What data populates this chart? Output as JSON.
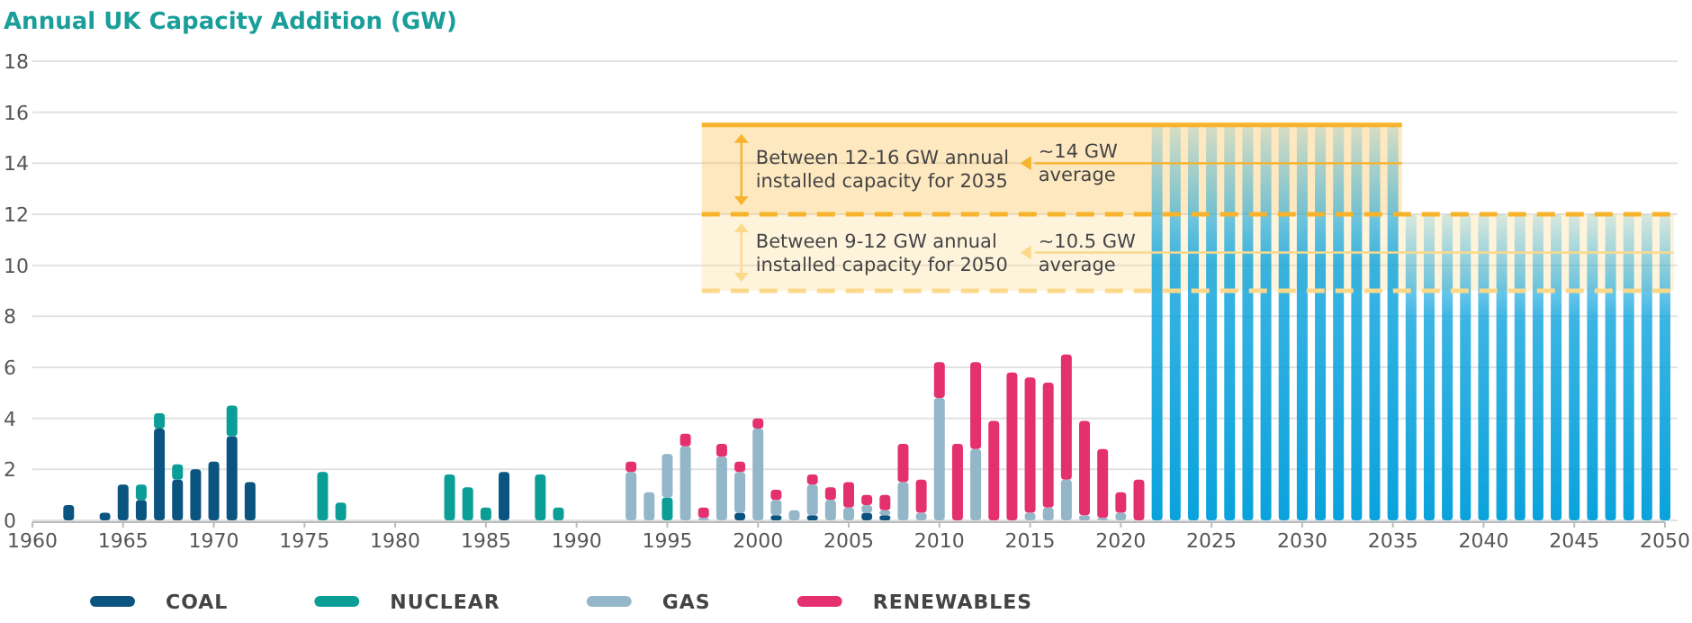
{
  "chart_data": {
    "type": "bar",
    "title": "Annual UK Capacity Addition (GW)",
    "stacked": true,
    "x": [
      1962,
      1964,
      1965,
      1966,
      1967,
      1968,
      1969,
      1970,
      1971,
      1972,
      1976,
      1977,
      1983,
      1984,
      1985,
      1986,
      1988,
      1989,
      1993,
      1994,
      1995,
      1996,
      1997,
      1998,
      1999,
      2000,
      2001,
      2002,
      2003,
      2004,
      2005,
      2006,
      2007,
      2008,
      2009,
      2010,
      2011,
      2012,
      2013,
      2014,
      2015,
      2016,
      2017,
      2018,
      2019,
      2020,
      2021,
      2022,
      2023,
      2024,
      2025,
      2026,
      2027,
      2028,
      2029,
      2030,
      2031,
      2032,
      2033,
      2034,
      2035,
      2036,
      2037,
      2038,
      2039,
      2040,
      2041,
      2042,
      2043,
      2044,
      2045,
      2046,
      2047,
      2048,
      2049,
      2050
    ],
    "series": [
      {
        "name": "COAL",
        "color": "#0b5480",
        "values": [
          0.6,
          0.3,
          1.4,
          0.8,
          3.6,
          1.6,
          2.0,
          2.3,
          3.3,
          1.5,
          null,
          null,
          null,
          null,
          null,
          1.9,
          null,
          null,
          null,
          null,
          null,
          null,
          null,
          null,
          0.3,
          null,
          0.2,
          null,
          0.2,
          null,
          null,
          0.3,
          0.2,
          null,
          null,
          null,
          null,
          null,
          null,
          null,
          null,
          null,
          null,
          null,
          null,
          null,
          null,
          null,
          null,
          null,
          null,
          null,
          null,
          null,
          null,
          null,
          null,
          null,
          null,
          null,
          null,
          null,
          null,
          null,
          null,
          null,
          null,
          null,
          null,
          null,
          null,
          null,
          null,
          null,
          null,
          null
        ]
      },
      {
        "name": "NUCLEAR",
        "color": "#0a9e96",
        "values": [
          null,
          null,
          null,
          0.6,
          0.6,
          0.6,
          null,
          null,
          1.2,
          null,
          1.9,
          0.7,
          1.8,
          1.3,
          0.5,
          null,
          1.8,
          0.5,
          null,
          null,
          0.9,
          null,
          null,
          null,
          null,
          null,
          null,
          null,
          null,
          null,
          null,
          null,
          null,
          null,
          null,
          null,
          null,
          null,
          null,
          null,
          null,
          null,
          null,
          null,
          null,
          null,
          null,
          null,
          null,
          null,
          null,
          null,
          null,
          null,
          null,
          null,
          null,
          null,
          null,
          null,
          null,
          null,
          null,
          null,
          null,
          null,
          null,
          null,
          null,
          null,
          null,
          null,
          null,
          null,
          null,
          null
        ]
      },
      {
        "name": "GAS",
        "color": "#93b7c8",
        "values": [
          null,
          null,
          null,
          null,
          null,
          null,
          null,
          null,
          null,
          null,
          null,
          null,
          null,
          null,
          null,
          null,
          null,
          null,
          1.9,
          1.1,
          1.7,
          2.9,
          0.1,
          2.5,
          1.6,
          3.6,
          0.6,
          0.4,
          1.2,
          0.8,
          0.5,
          0.3,
          0.2,
          1.5,
          0.3,
          4.8,
          null,
          2.8,
          null,
          null,
          0.3,
          0.5,
          1.6,
          0.2,
          0.1,
          0.3,
          null,
          null,
          null,
          null,
          null,
          null,
          null,
          null,
          null,
          null,
          null,
          null,
          null,
          null,
          null,
          null,
          null,
          null,
          null,
          null,
          null,
          null,
          null,
          null,
          null,
          null,
          null,
          null,
          null,
          null
        ]
      },
      {
        "name": "RENEWABLES",
        "color": "#e5306f",
        "values": [
          null,
          null,
          null,
          null,
          null,
          null,
          null,
          null,
          null,
          null,
          null,
          null,
          null,
          null,
          null,
          null,
          null,
          null,
          0.4,
          null,
          null,
          0.5,
          0.4,
          0.5,
          0.4,
          0.4,
          0.4,
          null,
          0.4,
          0.5,
          1.0,
          0.4,
          0.6,
          1.5,
          1.3,
          1.4,
          3.0,
          3.4,
          3.9,
          5.8,
          5.3,
          4.9,
          4.9,
          3.7,
          2.7,
          0.8,
          1.6,
          null,
          null,
          null,
          null,
          null,
          null,
          null,
          null,
          null,
          null,
          null,
          null,
          null,
          null,
          null,
          null,
          null,
          null,
          null,
          null,
          null,
          null,
          null,
          null,
          null,
          null,
          null,
          null,
          null
        ]
      },
      {
        "color": "#0aa2dc",
        "values": [
          null,
          null,
          null,
          null,
          null,
          null,
          null,
          null,
          null,
          null,
          null,
          null,
          null,
          null,
          null,
          null,
          null,
          null,
          null,
          null,
          null,
          null,
          null,
          null,
          null,
          null,
          null,
          null,
          null,
          null,
          null,
          null,
          null,
          null,
          null,
          null,
          null,
          null,
          null,
          null,
          null,
          null,
          null,
          null,
          null,
          null,
          null,
          15.5,
          15.5,
          15.5,
          15.5,
          15.5,
          15.5,
          15.5,
          15.5,
          15.5,
          15.5,
          15.5,
          15.5,
          15.5,
          15.5,
          12,
          12,
          12,
          12,
          12,
          12,
          12,
          12,
          12,
          12,
          12,
          12,
          12,
          12,
          12
        ]
      }
    ],
    "xlim": [
      1960,
      2050
    ],
    "xticks": [
      1960,
      1965,
      1970,
      1975,
      1980,
      1985,
      1990,
      1995,
      2000,
      2005,
      2010,
      2015,
      2020,
      2025,
      2030,
      2035,
      2040,
      2045,
      2050
    ],
    "ylim": [
      0,
      18
    ],
    "yticks": [
      0,
      2,
      4,
      6,
      8,
      10,
      12,
      14,
      16,
      18
    ],
    "grid": "y",
    "legend": "bottom",
    "bands": [
      {
        "axis": "y",
        "from": 12,
        "to": 15.5,
        "label": "Between 12-16 GW annual installed capacity for 2035",
        "color": "#f7b32b"
      },
      {
        "axis": "y",
        "from": 9,
        "to": 12,
        "label": "Between 9-12 GW annual installed capacity for 2050",
        "color": "#fcd98a"
      }
    ],
    "ref_lines": [
      {
        "axis": "y",
        "value": 15.5,
        "color": "#f7b32b"
      },
      {
        "axis": "y",
        "value": 12,
        "color": "#f7b32b",
        "line_style": "dashed"
      },
      {
        "axis": "y",
        "value": 9,
        "color": "#fcd98a",
        "line_style": "dashed"
      },
      {
        "axis": "y",
        "value": 14,
        "label": "~14 GW average",
        "color": "#f7b32b"
      },
      {
        "axis": "y",
        "value": 10.5,
        "label": "~10.5 GW average",
        "color": "#fcd98a"
      }
    ]
  }
}
